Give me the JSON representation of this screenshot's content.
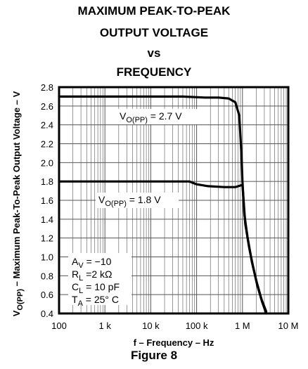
{
  "title_lines": [
    "MAXIMUM PEAK-TO-PEAK",
    "OUTPUT VOLTAGE",
    "vs",
    "FREQUENCY"
  ],
  "figure_caption": "Figure 8",
  "chart_data": {
    "type": "line",
    "xlabel": "f – Frequency – Hz",
    "ylabel": "V₀(PP) – Maximum Peak-To-Peak Output Voltage – V",
    "x_scale": "log",
    "xlim": [
      100,
      10000000
    ],
    "ylim": [
      0.4,
      2.8
    ],
    "x_ticks": [
      100,
      1000,
      10000,
      100000,
      1000000,
      10000000
    ],
    "x_tick_labels": [
      "100",
      "1 k",
      "10 k",
      "100 k",
      "1 M",
      "10 M"
    ],
    "y_ticks": [
      2.8,
      2.6,
      2.4,
      2.2,
      2.0,
      1.8,
      1.6,
      1.4,
      1.2,
      1.0,
      0.8,
      0.6,
      0.4
    ],
    "y_tick_labels": [
      "2.8",
      "2.6",
      "2.4",
      "2.2",
      "2.0",
      "1.8",
      "1.6",
      "1.4",
      "1.2",
      "1.0",
      "0.8",
      "0.6",
      "0.4"
    ],
    "grid": true,
    "series": [
      {
        "label_parts": {
          "main": "V",
          "sub": "O(PP)",
          "rest": " = 2.7 V"
        },
        "points": [
          [
            100,
            2.7
          ],
          [
            10000,
            2.7
          ],
          [
            50000,
            2.7
          ],
          [
            150000,
            2.69
          ],
          [
            300000,
            2.69
          ],
          [
            500000,
            2.68
          ],
          [
            700000,
            2.64
          ],
          [
            850000,
            2.5
          ],
          [
            950000,
            2.1
          ],
          [
            1000000,
            1.8
          ],
          [
            1100000,
            1.45
          ],
          [
            1300000,
            1.2
          ],
          [
            1600000,
            0.95
          ],
          [
            2000000,
            0.75
          ],
          [
            2600000,
            0.55
          ],
          [
            3300000,
            0.42
          ]
        ]
      },
      {
        "label_parts": {
          "main": "V",
          "sub": "O(PP)",
          "rest": " = 1.8 V"
        },
        "points": [
          [
            100,
            1.8
          ],
          [
            10000,
            1.8
          ],
          [
            70000,
            1.8
          ],
          [
            100000,
            1.77
          ],
          [
            180000,
            1.75
          ],
          [
            400000,
            1.74
          ],
          [
            700000,
            1.74
          ],
          [
            950000,
            1.76
          ],
          [
            1000000,
            1.76
          ],
          [
            1150000,
            1.35
          ],
          [
            1400000,
            1.1
          ],
          [
            1700000,
            0.9
          ],
          [
            2100000,
            0.7
          ],
          [
            2700000,
            0.52
          ],
          [
            3300000,
            0.4
          ]
        ]
      }
    ],
    "conditions": [
      {
        "main": "A",
        "sub": "V",
        "rest": " = −10"
      },
      {
        "main": "R",
        "sub": "L",
        "rest": " =2 kΩ"
      },
      {
        "main": "C",
        "sub": "L",
        "rest": " = 10 pF"
      },
      {
        "main": "T",
        "sub": "A",
        "rest": " = 25° C"
      }
    ],
    "colors": {
      "line": "#000000",
      "grid": "#555555"
    }
  }
}
